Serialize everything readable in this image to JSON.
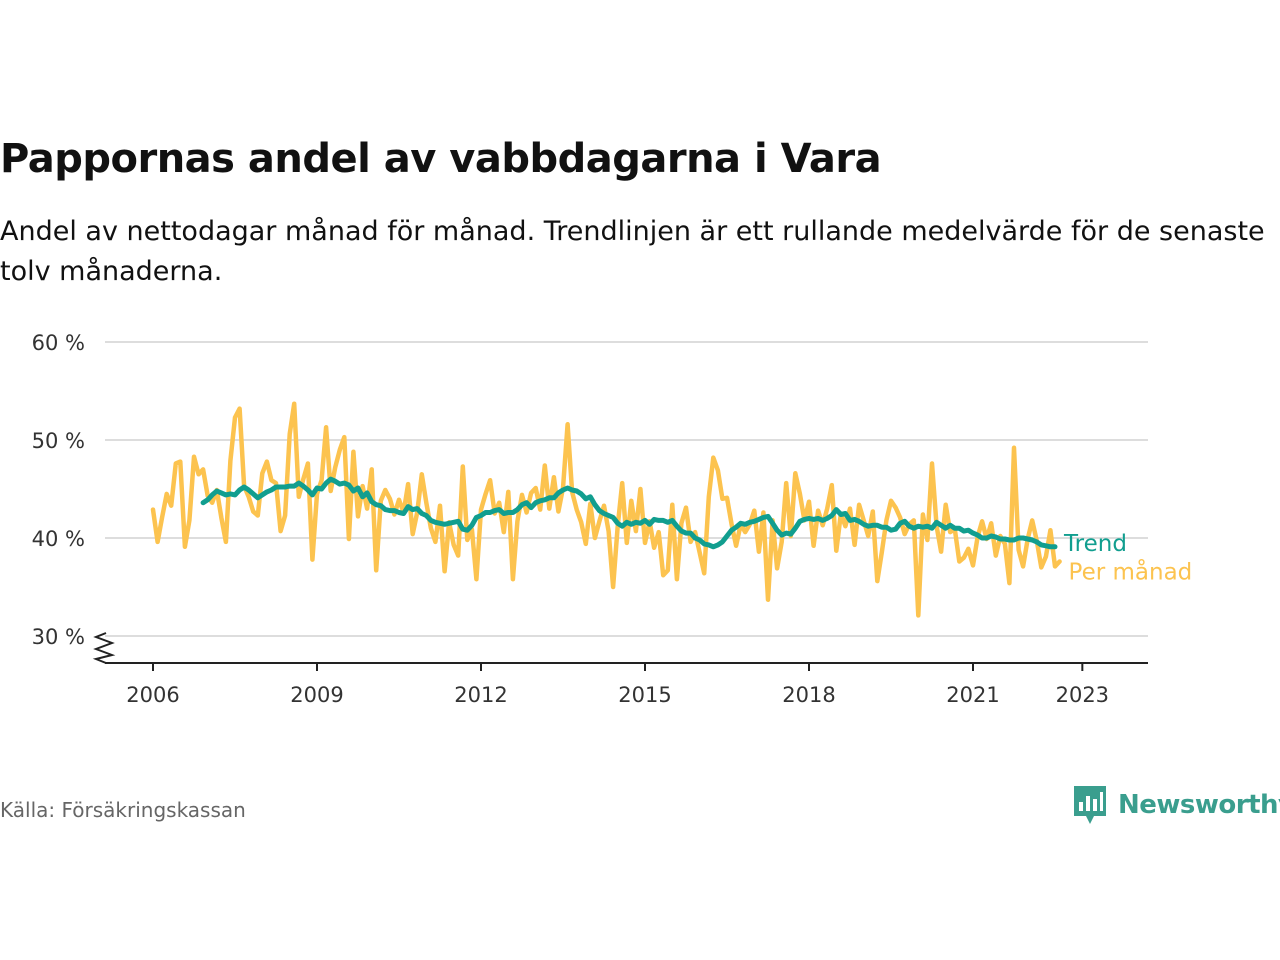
{
  "header": {
    "title": "Pappornas andel av vabbdagarna i Vara",
    "subtitle": "Andel av nettodagar månad för månad. Trendlinjen är ett rullande medelvärde för de senaste tolv månaderna."
  },
  "footer": {
    "source": "Källa: Försäkringskassan",
    "brand": "Newsworthy"
  },
  "colors": {
    "monthly": "#fcc34f",
    "trend": "#119e8f",
    "grid": "#dddddd",
    "axis": "#222222",
    "brand": "#3a9e8e"
  },
  "icons": {
    "brand_logo": "newsworthy-logo-icon",
    "axis_break": "axis-break-icon"
  },
  "chart_data": {
    "type": "line",
    "title": "Pappornas andel av vabbdagarna i Vara",
    "y_unit": "%",
    "ylim": [
      27,
      60
    ],
    "y_ticks": [
      {
        "value": 30,
        "label": "30 %"
      },
      {
        "value": 40,
        "label": "40 %"
      },
      {
        "value": 50,
        "label": "50 %"
      },
      {
        "value": 60,
        "label": "60 %"
      }
    ],
    "y_axis_break": true,
    "xlim": [
      "2006-01",
      "2024-01"
    ],
    "x_ticks": [
      "2006",
      "2009",
      "2012",
      "2015",
      "2018",
      "2021",
      "2023"
    ],
    "grid": "horizontal",
    "series": [
      {
        "name": "Per månad",
        "start": "2006-01",
        "values": [
          42.9,
          39.6,
          42.1,
          44.5,
          43.3,
          47.6,
          47.8,
          39.1,
          41.8,
          48.3,
          46.5,
          47.0,
          44.3,
          43.6,
          44.9,
          42.1,
          39.6,
          47.9,
          52.3,
          53.2,
          45.3,
          44.2,
          42.7,
          42.3,
          46.6,
          47.8,
          45.9,
          45.6,
          40.7,
          42.3,
          50.6,
          53.7,
          44.2,
          46.0,
          47.6,
          37.8,
          44.5,
          45.9,
          51.3,
          44.8,
          47.2,
          49.0,
          50.3,
          39.9,
          48.8,
          42.2,
          45.3,
          43.0,
          47.0,
          36.7,
          43.8,
          44.9,
          44.0,
          42.4,
          43.9,
          42.6,
          45.5,
          40.4,
          42.6,
          46.5,
          43.6,
          41.0,
          39.6,
          43.3,
          36.6,
          41.6,
          39.3,
          38.2,
          47.3,
          39.8,
          40.9,
          35.8,
          42.9,
          44.5,
          45.9,
          42.5,
          43.6,
          40.6,
          44.7,
          35.8,
          41.7,
          44.4,
          42.6,
          44.6,
          45.1,
          42.9,
          47.4,
          43.0,
          46.2,
          42.7,
          45.1,
          51.6,
          44.7,
          42.9,
          41.6,
          39.4,
          43.5,
          40.0,
          41.7,
          43.3,
          40.7,
          35.0,
          41.2,
          45.6,
          39.5,
          43.8,
          40.7,
          45.0,
          39.5,
          41.7,
          39.0,
          40.6,
          36.2,
          36.7,
          43.4,
          35.8,
          41.5,
          43.1,
          39.6,
          40.6,
          38.5,
          36.4,
          44.2,
          48.2,
          46.9,
          44.0,
          44.1,
          41.4,
          39.2,
          41.4,
          40.6,
          41.4,
          42.8,
          38.6,
          42.6,
          33.7,
          41.8,
          36.9,
          39.6,
          45.6,
          40.2,
          46.6,
          44.5,
          41.8,
          43.7,
          39.2,
          42.8,
          41.3,
          43.0,
          45.4,
          38.7,
          42.5,
          41.2,
          43.0,
          39.3,
          43.4,
          41.8,
          40.2,
          42.7,
          35.6,
          38.6,
          41.8,
          43.8,
          43.1,
          42.1,
          40.4,
          41.4,
          41.8,
          32.1,
          42.4,
          39.8,
          47.6,
          41.2,
          38.6,
          43.4,
          40.6,
          40.9,
          37.6,
          38.0,
          38.9,
          37.2,
          40.1,
          41.7,
          39.9,
          41.5,
          38.2,
          40.2,
          39.4,
          35.4,
          49.2,
          38.8,
          37.1,
          39.9,
          41.8,
          39.7,
          37.0,
          38.1,
          40.8,
          37.1,
          37.6
        ]
      },
      {
        "name": "Trend",
        "start": "2006-12",
        "values": [
          43.6,
          43.9,
          44.4,
          44.8,
          44.6,
          44.4,
          44.5,
          44.4,
          44.9,
          45.2,
          44.9,
          44.5,
          44.1,
          44.4,
          44.7,
          44.9,
          45.2,
          45.2,
          45.2,
          45.3,
          45.3,
          45.6,
          45.3,
          44.9,
          44.4,
          45.1,
          45.0,
          45.6,
          46.0,
          45.8,
          45.5,
          45.6,
          45.4,
          44.8,
          45.1,
          44.2,
          44.6,
          43.7,
          43.4,
          43.3,
          42.9,
          42.8,
          42.8,
          42.6,
          42.5,
          43.2,
          42.9,
          43.0,
          42.5,
          42.3,
          41.8,
          41.6,
          41.5,
          41.4,
          41.5,
          41.6,
          41.7,
          40.9,
          40.8,
          41.3,
          42.1,
          42.3,
          42.6,
          42.6,
          42.8,
          42.9,
          42.5,
          42.6,
          42.6,
          42.9,
          43.4,
          43.6,
          43.1,
          43.6,
          43.8,
          43.9,
          44.1,
          44.1,
          44.6,
          44.9,
          45.1,
          44.9,
          44.8,
          44.5,
          44.0,
          44.2,
          43.4,
          42.8,
          42.5,
          42.3,
          42.1,
          41.5,
          41.2,
          41.6,
          41.4,
          41.6,
          41.5,
          41.8,
          41.4,
          41.9,
          41.8,
          41.8,
          41.6,
          41.8,
          41.2,
          40.7,
          40.5,
          40.5,
          40.0,
          39.8,
          39.4,
          39.3,
          39.1,
          39.3,
          39.6,
          40.2,
          40.8,
          41.1,
          41.5,
          41.4,
          41.6,
          41.7,
          41.9,
          42.1,
          42.2,
          41.5,
          40.8,
          40.3,
          40.5,
          40.4,
          41.0,
          41.7,
          41.9,
          42.0,
          41.9,
          42.0,
          41.8,
          42.0,
          42.3,
          42.9,
          42.4,
          42.5,
          41.8,
          41.9,
          41.7,
          41.4,
          41.2,
          41.3,
          41.3,
          41.1,
          41.1,
          40.8,
          40.9,
          41.5,
          41.7,
          41.2,
          41.0,
          41.2,
          41.1,
          41.2,
          41.0,
          41.6,
          41.3,
          41.0,
          41.3,
          41.0,
          41.0,
          40.7,
          40.8,
          40.5,
          40.3,
          40.0,
          40.0,
          40.2,
          40.1,
          39.9,
          39.9,
          39.8,
          39.8,
          40.0,
          40.0,
          39.9,
          39.8,
          39.6,
          39.3,
          39.2,
          39.1,
          39.1
        ]
      }
    ]
  }
}
